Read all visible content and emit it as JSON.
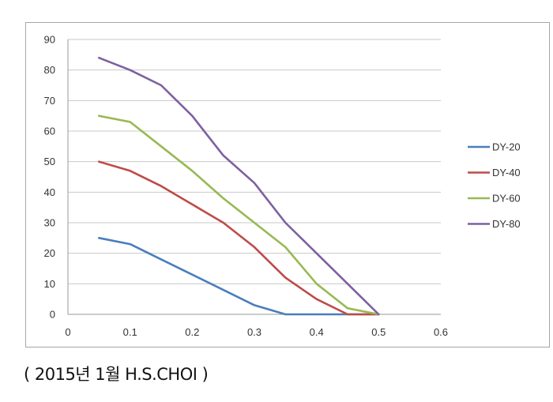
{
  "chart_data": {
    "type": "line",
    "title": "",
    "xlabel": "",
    "ylabel": "",
    "xlim": [
      0,
      0.6
    ],
    "ylim": [
      0,
      90
    ],
    "xticks": [
      0,
      0.1,
      0.2,
      0.3,
      0.4,
      0.5,
      0.6
    ],
    "xtick_labels": [
      "0",
      "0.1",
      "0.2",
      "0.3",
      "0.4",
      "0.5",
      "0.6"
    ],
    "yticks": [
      0,
      10,
      20,
      30,
      40,
      50,
      60,
      70,
      80,
      90
    ],
    "ytick_labels": [
      "0",
      "10",
      "20",
      "30",
      "40",
      "50",
      "60",
      "70",
      "80",
      "90"
    ],
    "grid": "horizontal",
    "legend_position": "right",
    "x": [
      0.05,
      0.1,
      0.15,
      0.2,
      0.25,
      0.3,
      0.35,
      0.4,
      0.45,
      0.5
    ],
    "series": [
      {
        "name": "DY-20",
        "color": "#4a7ebb",
        "values": [
          25,
          23,
          18,
          13,
          8,
          3,
          0,
          0,
          0,
          0
        ]
      },
      {
        "name": "DY-40",
        "color": "#be4b48",
        "values": [
          50,
          47,
          42,
          36,
          30,
          22,
          12,
          5,
          0,
          0
        ]
      },
      {
        "name": "DY-60",
        "color": "#98b954",
        "values": [
          65,
          63,
          55,
          47,
          38,
          30,
          22,
          10,
          2,
          0
        ]
      },
      {
        "name": "DY-80",
        "color": "#7d60a0",
        "values": [
          84,
          80,
          75,
          65,
          52,
          43,
          30,
          20,
          10,
          0
        ]
      }
    ]
  },
  "caption": "( 2015년 1월 H.S.CHOI )"
}
